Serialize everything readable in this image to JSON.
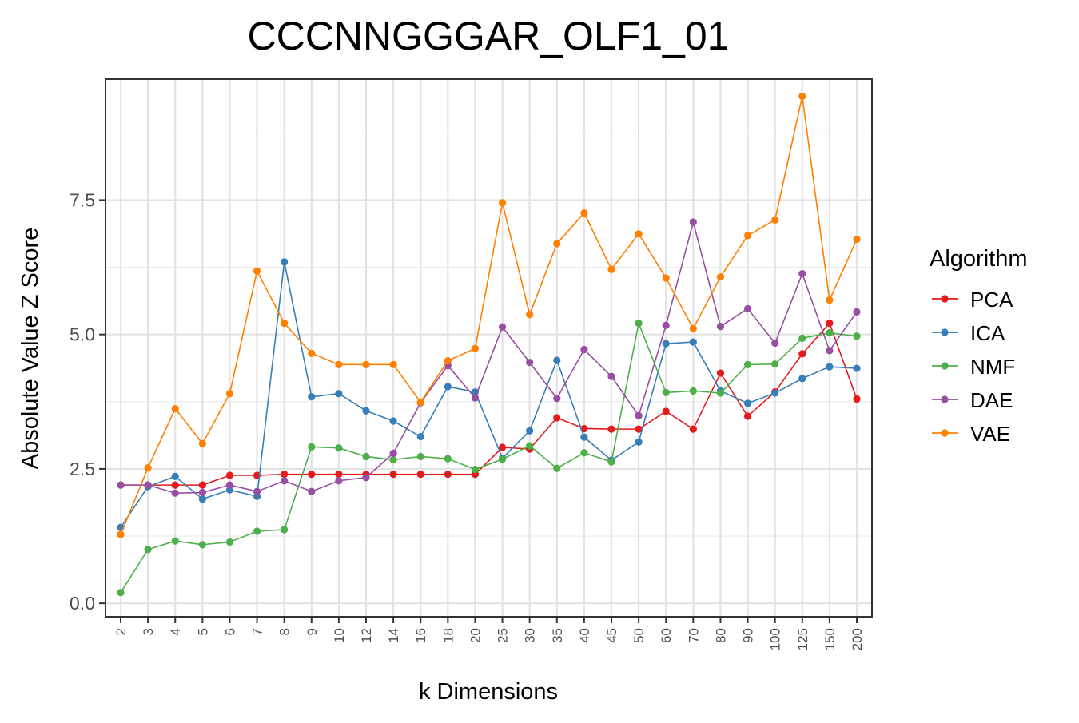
{
  "chart_data": {
    "type": "line",
    "title": "CCCNNGGGAR_OLF1_01",
    "xlabel": "k Dimensions",
    "ylabel": "Absolute Value Z Score",
    "categories": [
      "2",
      "3",
      "4",
      "5",
      "6",
      "7",
      "8",
      "9",
      "10",
      "12",
      "14",
      "16",
      "18",
      "20",
      "25",
      "30",
      "35",
      "40",
      "45",
      "50",
      "60",
      "70",
      "80",
      "90",
      "100",
      "125",
      "150",
      "200"
    ],
    "ylim": [
      -0.25,
      9.75
    ],
    "yticks": [
      0.0,
      2.5,
      5.0,
      7.5
    ],
    "ytick_labels": [
      "0.0",
      "2.5",
      "5.0",
      "7.5"
    ],
    "grid": true,
    "legend": {
      "title": "Algorithm",
      "position": "right"
    },
    "series": [
      {
        "name": "PCA",
        "color": "#e41a1c",
        "values": [
          2.2,
          2.2,
          2.2,
          2.2,
          2.38,
          2.38,
          2.4,
          2.4,
          2.4,
          2.4,
          2.4,
          2.4,
          2.4,
          2.4,
          2.9,
          2.87,
          3.45,
          3.25,
          3.24,
          3.24,
          3.57,
          3.24,
          4.28,
          3.48,
          3.93,
          4.64,
          5.21,
          3.8
        ]
      },
      {
        "name": "ICA",
        "color": "#377eb8",
        "values": [
          1.41,
          2.17,
          2.36,
          1.94,
          2.11,
          1.99,
          6.35,
          3.84,
          3.9,
          3.58,
          3.39,
          3.1,
          4.03,
          3.93,
          2.7,
          3.21,
          4.52,
          3.09,
          2.66,
          3.0,
          4.83,
          4.86,
          3.95,
          3.72,
          3.91,
          4.18,
          4.4,
          4.37
        ]
      },
      {
        "name": "NMF",
        "color": "#4daf4a",
        "values": [
          0.2,
          1.0,
          1.16,
          1.09,
          1.14,
          1.34,
          1.37,
          2.91,
          2.89,
          2.73,
          2.67,
          2.73,
          2.69,
          2.49,
          2.68,
          2.93,
          2.51,
          2.8,
          2.63,
          5.21,
          3.92,
          3.95,
          3.91,
          4.44,
          4.45,
          4.93,
          5.03,
          4.97
        ]
      },
      {
        "name": "DAE",
        "color": "#984ea3",
        "values": [
          2.2,
          2.2,
          2.05,
          2.06,
          2.2,
          2.08,
          2.28,
          2.08,
          2.28,
          2.34,
          2.79,
          3.73,
          4.42,
          3.82,
          5.14,
          4.48,
          3.81,
          4.72,
          4.22,
          3.49,
          5.17,
          7.09,
          5.15,
          5.48,
          4.84,
          6.13,
          4.7,
          5.42
        ]
      },
      {
        "name": "VAE",
        "color": "#ff7f00",
        "values": [
          1.28,
          2.52,
          3.62,
          2.97,
          3.9,
          6.18,
          5.21,
          4.65,
          4.44,
          4.44,
          4.44,
          3.74,
          4.51,
          4.74,
          7.45,
          5.37,
          6.69,
          7.26,
          6.21,
          6.87,
          6.05,
          5.11,
          6.07,
          6.84,
          7.13,
          9.43,
          5.64,
          6.77
        ]
      }
    ]
  }
}
